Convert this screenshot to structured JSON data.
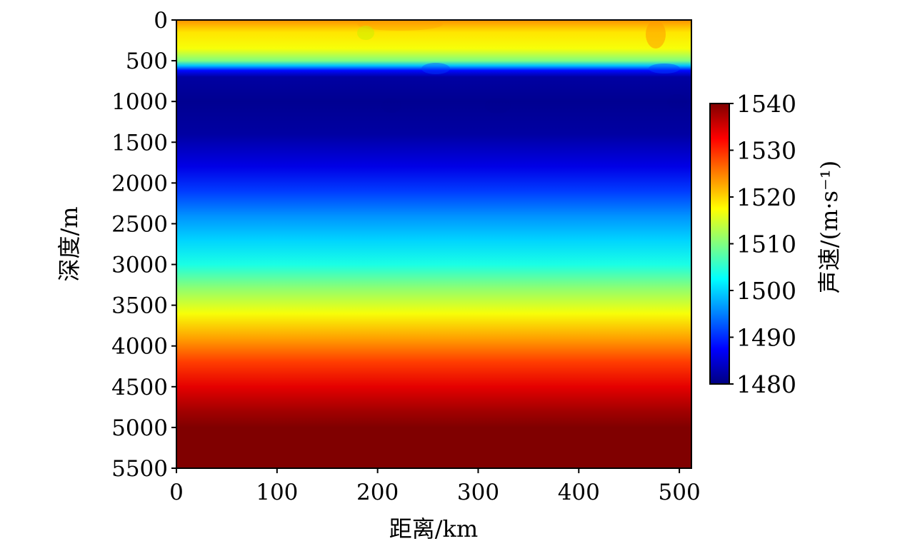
{
  "chart_data": {
    "type": "heatmap",
    "title": "",
    "xlabel": "距离/km",
    "ylabel": "深度/m",
    "colorbar_label": "声速/(m·s⁻¹)",
    "xlim": [
      0,
      512
    ],
    "ylim": [
      5500,
      0
    ],
    "y_inverted": true,
    "x_ticks": [
      0,
      100,
      200,
      300,
      400,
      500
    ],
    "x_tick_labels": [
      "0",
      "100",
      "200",
      "300",
      "400",
      "500"
    ],
    "y_ticks": [
      0,
      500,
      1000,
      1500,
      2000,
      2500,
      3000,
      3500,
      4000,
      4500,
      5000,
      5500
    ],
    "y_tick_labels": [
      "0",
      "500",
      "1000",
      "1500",
      "2000",
      "2500",
      "3000",
      "3500",
      "4000",
      "4500",
      "5000",
      "5500"
    ],
    "colorbar_range": [
      1480,
      1540
    ],
    "colorbar_ticks": [
      1480,
      1490,
      1500,
      1510,
      1520,
      1530,
      1540
    ],
    "colorbar_tick_labels": [
      "1480",
      "1490",
      "1500",
      "1510",
      "1520",
      "1530",
      "1540"
    ],
    "colormap": "jet",
    "profile_depths": [
      0,
      150,
      350,
      500,
      560,
      620,
      700,
      1000,
      1400,
      1800,
      2100,
      2400,
      2700,
      3000,
      3300,
      3600,
      3900,
      4200,
      4500,
      4800,
      5000,
      5500
    ],
    "profile_speeds": [
      1524,
      1519,
      1517,
      1510,
      1499,
      1488,
      1482,
      1481,
      1482,
      1486,
      1491,
      1496,
      1500,
      1504,
      1511,
      1517,
      1523,
      1529,
      1534,
      1538,
      1540,
      1540
    ],
    "grid": false,
    "legend": "colorbar-right"
  }
}
